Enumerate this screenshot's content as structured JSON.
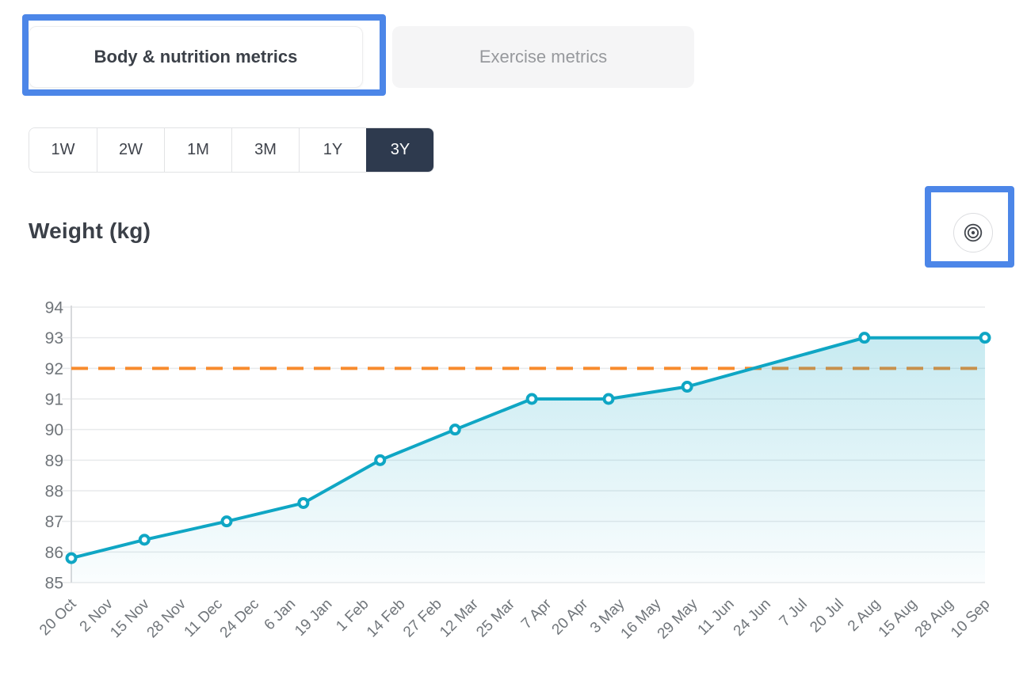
{
  "tabs": {
    "body_nutrition_label": "Body & nutrition metrics",
    "exercise_label": "Exercise metrics"
  },
  "time_ranges": {
    "options": [
      "1W",
      "2W",
      "1M",
      "3M",
      "1Y",
      "3Y"
    ],
    "selected": "3Y"
  },
  "chart_title": "Weight (kg)",
  "goal_button": {
    "icon": "bullseye-target-icon"
  },
  "annotations": {
    "highlight_color": "#4c86e8",
    "highlighted_elements": [
      "body-nutrition-tab",
      "goal-target-button"
    ]
  },
  "colors": {
    "line_teal": "#0fa6c4",
    "goal_orange": "#f78b2d",
    "selected_range_bg": "#2e3a4e",
    "tick_text": "#70757a",
    "grid": "#e8eaec",
    "axis": "#d7d9dc"
  },
  "chart_data": {
    "type": "area",
    "title": "Weight (kg)",
    "xlabel": "",
    "ylabel": "",
    "ylim": [
      85,
      94
    ],
    "yticks": [
      85,
      86,
      87,
      88,
      89,
      90,
      91,
      92,
      93,
      94
    ],
    "grid": true,
    "legend": false,
    "categories": [
      "20 Oct",
      "2 Nov",
      "15 Nov",
      "28 Nov",
      "11 Dec",
      "24 Dec",
      "6 Jan",
      "19 Jan",
      "1 Feb",
      "14 Feb",
      "27 Feb",
      "12 Mar",
      "25 Mar",
      "7 Apr",
      "20 Apr",
      "3 May",
      "16 May",
      "29 May",
      "11 Jun",
      "24 Jun",
      "7 Jul",
      "20 Jul",
      "2 Aug",
      "15 Aug",
      "28 Aug",
      "10 Sep"
    ],
    "series": [
      {
        "name": "Weight (kg)",
        "marker": "open-circle",
        "points": [
          [
            0,
            85.8
          ],
          [
            2,
            86.4
          ],
          [
            4.25,
            87.0
          ],
          [
            6.35,
            87.6
          ],
          [
            8.45,
            89.0
          ],
          [
            10.5,
            90.0
          ],
          [
            12.6,
            91.0
          ],
          [
            14.7,
            91.0
          ],
          [
            16.85,
            91.4
          ],
          [
            21.7,
            93.0
          ],
          [
            25,
            93.0
          ]
        ]
      }
    ],
    "goal_line": {
      "value": 92,
      "style": "dashed",
      "color": "#f78b2d"
    },
    "line_color": "#0fa6c4",
    "area_gradient_top": "rgba(15,166,196,0.26)",
    "area_gradient_bottom": "rgba(15,166,196,0.02)"
  }
}
